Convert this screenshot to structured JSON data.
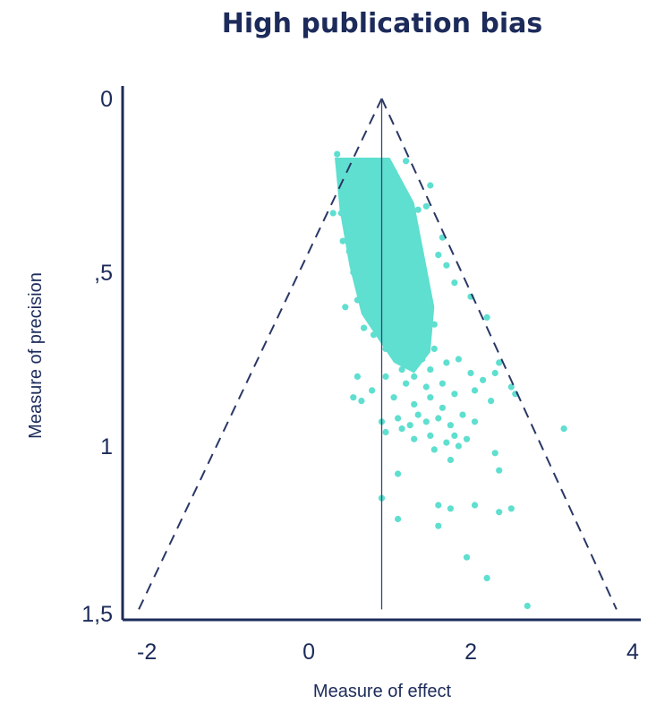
{
  "chart_data": {
    "type": "scatter",
    "title": "High publication bias",
    "xlabel": "Measure of effect",
    "ylabel": "Measure of precision",
    "xlim": [
      -2.3,
      4.1
    ],
    "ylim": [
      0,
      1.5
    ],
    "y_axis_inverted": true,
    "x_ticks": [
      {
        "value": -2,
        "label": "-2"
      },
      {
        "value": 0,
        "label": "0"
      },
      {
        "value": 2,
        "label": "2"
      },
      {
        "value": 4,
        "label": "4"
      }
    ],
    "y_ticks": [
      {
        "value": 0,
        "label": "0"
      },
      {
        "value": 0.5,
        "label": ",5"
      },
      {
        "value": 1,
        "label": "1"
      },
      {
        "value": 1.5,
        "label": "1,5"
      }
    ],
    "reference_line_x": 0.9,
    "funnel": {
      "apex": [
        0.9,
        0
      ],
      "base_left": [
        -2.1,
        1.47
      ],
      "base_right": [
        3.8,
        1.47
      ]
    },
    "grid": false,
    "legend": "none",
    "colors": {
      "points": "#5edfcf",
      "axis": "#1c2b5a",
      "funnel": "#2a3766",
      "reference_line": "#3a4670"
    },
    "series": [
      {
        "points": [
          [
            0.35,
            0.16
          ],
          [
            0.4,
            0.19
          ],
          [
            0.48,
            0.22
          ],
          [
            0.55,
            0.18
          ],
          [
            0.62,
            0.21
          ],
          [
            0.7,
            0.19
          ],
          [
            0.78,
            0.2
          ],
          [
            0.85,
            0.22
          ],
          [
            0.95,
            0.19
          ],
          [
            1.05,
            0.21
          ],
          [
            0.45,
            0.26
          ],
          [
            0.52,
            0.29
          ],
          [
            0.6,
            0.27
          ],
          [
            0.68,
            0.31
          ],
          [
            0.75,
            0.28
          ],
          [
            0.82,
            0.3
          ],
          [
            0.9,
            0.27
          ],
          [
            1.0,
            0.29
          ],
          [
            1.1,
            0.26
          ],
          [
            1.18,
            0.28
          ],
          [
            0.4,
            0.33
          ],
          [
            0.5,
            0.36
          ],
          [
            0.58,
            0.34
          ],
          [
            0.66,
            0.38
          ],
          [
            0.74,
            0.35
          ],
          [
            0.84,
            0.37
          ],
          [
            0.94,
            0.34
          ],
          [
            1.04,
            0.36
          ],
          [
            1.12,
            0.33
          ],
          [
            1.22,
            0.35
          ],
          [
            0.42,
            0.41
          ],
          [
            0.5,
            0.44
          ],
          [
            0.58,
            0.42
          ],
          [
            0.66,
            0.46
          ],
          [
            0.76,
            0.43
          ],
          [
            0.86,
            0.45
          ],
          [
            0.96,
            0.42
          ],
          [
            1.06,
            0.44
          ],
          [
            1.16,
            0.41
          ],
          [
            1.26,
            0.43
          ],
          [
            0.55,
            0.5
          ],
          [
            0.62,
            0.53
          ],
          [
            0.7,
            0.51
          ],
          [
            0.8,
            0.55
          ],
          [
            0.9,
            0.52
          ],
          [
            1.0,
            0.54
          ],
          [
            1.1,
            0.51
          ],
          [
            1.2,
            0.53
          ],
          [
            1.3,
            0.5
          ],
          [
            1.4,
            0.52
          ],
          [
            0.6,
            0.58
          ],
          [
            0.7,
            0.61
          ],
          [
            0.8,
            0.59
          ],
          [
            0.92,
            0.62
          ],
          [
            1.02,
            0.6
          ],
          [
            1.12,
            0.63
          ],
          [
            1.22,
            0.59
          ],
          [
            1.32,
            0.61
          ],
          [
            1.42,
            0.58
          ],
          [
            1.5,
            0.6
          ],
          [
            0.68,
            0.66
          ],
          [
            0.8,
            0.68
          ],
          [
            0.92,
            0.66
          ],
          [
            1.05,
            0.69
          ],
          [
            1.15,
            0.67
          ],
          [
            1.25,
            0.7
          ],
          [
            1.35,
            0.66
          ],
          [
            1.45,
            0.68
          ],
          [
            1.55,
            0.65
          ],
          [
            0.95,
            0.72
          ],
          [
            1.1,
            0.74
          ],
          [
            1.25,
            0.73
          ],
          [
            1.4,
            0.75
          ],
          [
            1.55,
            0.72
          ],
          [
            1.35,
            0.32
          ],
          [
            1.45,
            0.31
          ],
          [
            1.6,
            0.45
          ],
          [
            1.7,
            0.48
          ],
          [
            1.8,
            0.53
          ],
          [
            2.0,
            0.57
          ],
          [
            2.2,
            0.63
          ],
          [
            1.65,
            0.4
          ],
          [
            0.3,
            0.33
          ],
          [
            0.45,
            0.6
          ],
          [
            1.5,
            0.25
          ],
          [
            1.2,
            0.18
          ],
          [
            0.6,
            0.8
          ],
          [
            0.95,
            0.8
          ],
          [
            1.15,
            0.78
          ],
          [
            1.3,
            0.8
          ],
          [
            1.5,
            0.78
          ],
          [
            1.7,
            0.76
          ],
          [
            1.85,
            0.75
          ],
          [
            2.0,
            0.79
          ],
          [
            2.15,
            0.81
          ],
          [
            2.3,
            0.79
          ],
          [
            2.35,
            0.76
          ],
          [
            1.2,
            0.82
          ],
          [
            1.45,
            0.83
          ],
          [
            1.65,
            0.82
          ],
          [
            0.55,
            0.86
          ],
          [
            0.65,
            0.87
          ],
          [
            0.78,
            0.84
          ],
          [
            1.05,
            0.86
          ],
          [
            1.3,
            0.88
          ],
          [
            1.5,
            0.86
          ],
          [
            1.65,
            0.89
          ],
          [
            1.8,
            0.85
          ],
          [
            2.05,
            0.84
          ],
          [
            2.25,
            0.87
          ],
          [
            2.5,
            0.83
          ],
          [
            2.55,
            0.85
          ],
          [
            0.9,
            0.93
          ],
          [
            1.1,
            0.92
          ],
          [
            1.25,
            0.94
          ],
          [
            1.35,
            0.91
          ],
          [
            1.45,
            0.93
          ],
          [
            1.6,
            0.92
          ],
          [
            1.75,
            0.94
          ],
          [
            1.9,
            0.91
          ],
          [
            2.05,
            0.93
          ],
          [
            0.95,
            0.96
          ],
          [
            1.15,
            0.95
          ],
          [
            1.3,
            0.98
          ],
          [
            1.5,
            0.97
          ],
          [
            1.7,
            0.99
          ],
          [
            1.85,
            1.0
          ],
          [
            1.95,
            0.98
          ],
          [
            1.55,
            1.01
          ],
          [
            1.8,
            0.97
          ],
          [
            3.15,
            0.95
          ],
          [
            2.3,
            1.02
          ],
          [
            1.75,
            1.04
          ],
          [
            1.1,
            1.08
          ],
          [
            2.35,
            1.07
          ],
          [
            0.9,
            1.15
          ],
          [
            1.6,
            1.17
          ],
          [
            1.75,
            1.18
          ],
          [
            2.05,
            1.17
          ],
          [
            2.35,
            1.19
          ],
          [
            2.5,
            1.18
          ],
          [
            1.1,
            1.21
          ],
          [
            1.6,
            1.23
          ],
          [
            1.95,
            1.32
          ],
          [
            2.2,
            1.38
          ],
          [
            2.7,
            1.46
          ]
        ]
      }
    ]
  }
}
